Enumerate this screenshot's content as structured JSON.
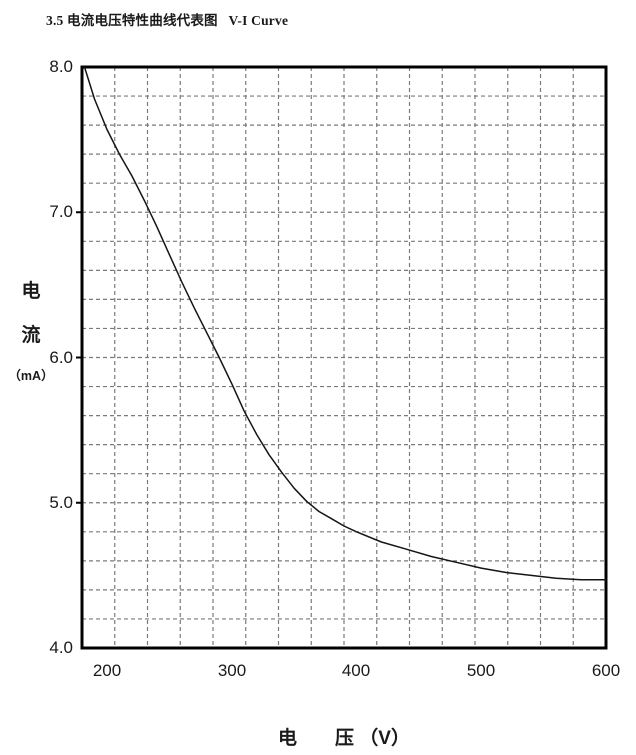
{
  "header": {
    "title": "3.5 电流电压特性曲线代表图   V-I Curve"
  },
  "axes": {
    "y_title_chars": [
      "电",
      "流"
    ],
    "y_unit": "（mA）",
    "ytick_labels": [
      "8.0",
      "7.0",
      "6.0",
      "5.0",
      "4.0"
    ],
    "xtick_labels": [
      "200",
      "300",
      "400",
      "500",
      "600"
    ]
  },
  "chart_data": {
    "type": "line",
    "title": "3.5 电流电压特性曲线代表图 V-I Curve",
    "xlabel": "电　　压 （V）",
    "ylabel": "电流（mA）",
    "xlim": [
      180,
      600
    ],
    "ylim": [
      4.0,
      8.0
    ],
    "xticks": [
      200,
      300,
      400,
      500,
      600
    ],
    "yticks": [
      8.0,
      7.0,
      6.0,
      5.0,
      4.0
    ],
    "legend": "none",
    "grid": {
      "style": "dashed",
      "cols": 16,
      "rows": 20
    },
    "colors": {
      "curve": "#151515",
      "grid": "#7a7a7a",
      "border": "#000000",
      "text": "#1a1a1a"
    },
    "series": [
      {
        "name": "V-I curve",
        "x": [
          182,
          190,
          200,
          210,
          220,
          230,
          240,
          250,
          260,
          270,
          280,
          290,
          300,
          310,
          320,
          330,
          340,
          350,
          360,
          370,
          380,
          390,
          400,
          420,
          440,
          460,
          480,
          500,
          520,
          540,
          560,
          580,
          600
        ],
        "y": [
          8.0,
          7.78,
          7.57,
          7.4,
          7.25,
          7.08,
          6.9,
          6.71,
          6.52,
          6.34,
          6.17,
          6.0,
          5.82,
          5.63,
          5.47,
          5.33,
          5.21,
          5.1,
          5.01,
          4.94,
          4.89,
          4.84,
          4.8,
          4.73,
          4.68,
          4.63,
          4.59,
          4.55,
          4.52,
          4.5,
          4.48,
          4.47,
          4.47
        ]
      }
    ]
  }
}
